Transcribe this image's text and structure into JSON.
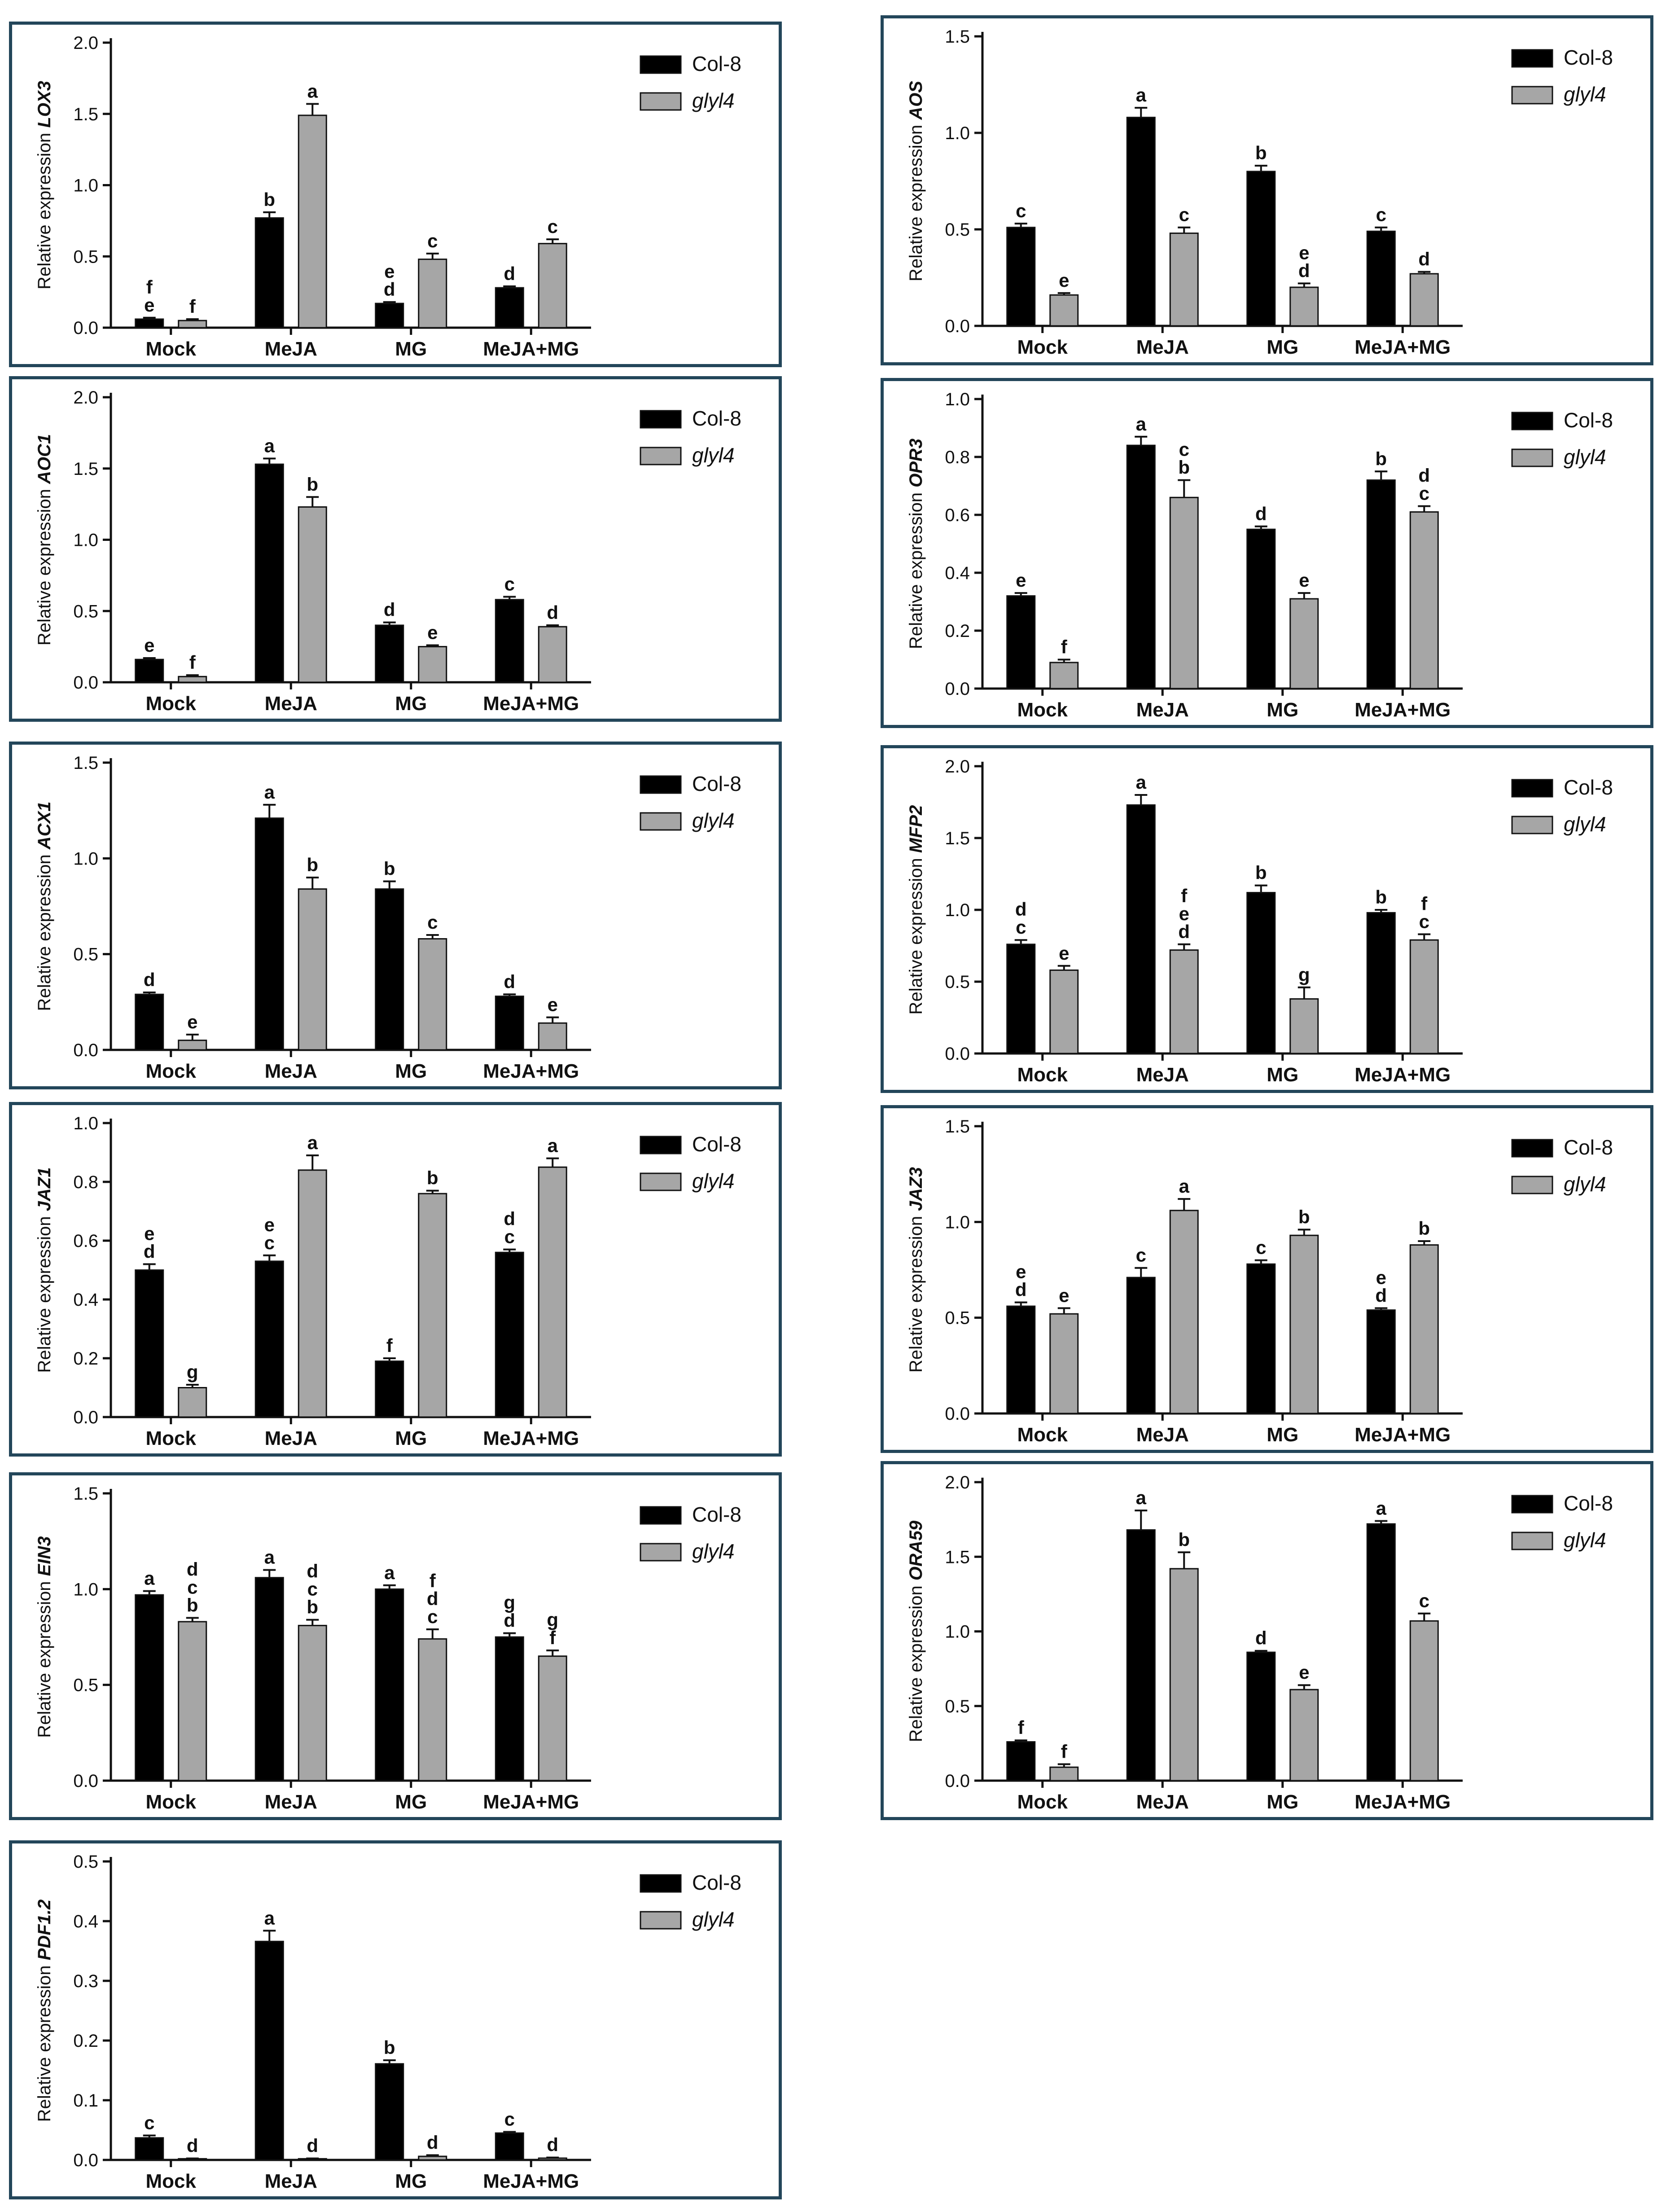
{
  "legend": [
    {
      "name": "Col-8",
      "color": "#000000",
      "italic": false
    },
    {
      "name": "glyl4",
      "color": "#a6a6a6",
      "italic": true
    }
  ],
  "chart_data": [
    {
      "type": "bar",
      "title": "",
      "ylabel_prefix": "Relative expression ",
      "gene": "LOX3",
      "categories": [
        "Mock",
        "MeJA",
        "MG",
        "MeJA+MG"
      ],
      "ylim": [
        0,
        2.0
      ],
      "yticks": [
        "0.0",
        "0.5",
        "1.0",
        "1.5",
        "2.0"
      ],
      "series": [
        {
          "name": "Col-8",
          "values": [
            0.06,
            0.77,
            0.17,
            0.28
          ],
          "errors": [
            0.01,
            0.04,
            0.01,
            0.01
          ],
          "letters": [
            "f\ne",
            "b",
            "e\nd",
            "d"
          ]
        },
        {
          "name": "glyl4",
          "values": [
            0.05,
            1.49,
            0.48,
            0.59
          ],
          "errors": [
            0.01,
            0.08,
            0.04,
            0.03
          ],
          "letters": [
            "f",
            "a",
            "c",
            "c"
          ]
        }
      ]
    },
    {
      "type": "bar",
      "title": "",
      "ylabel_prefix": "Relative expression ",
      "gene": "AOS",
      "categories": [
        "Mock",
        "MeJA",
        "MG",
        "MeJA+MG"
      ],
      "ylim": [
        0,
        1.5
      ],
      "yticks": [
        "0.0",
        "0.5",
        "1.0",
        "1.5"
      ],
      "series": [
        {
          "name": "Col-8",
          "values": [
            0.51,
            1.08,
            0.8,
            0.49
          ],
          "errors": [
            0.02,
            0.05,
            0.03,
            0.02
          ],
          "letters": [
            "c",
            "a",
            "b",
            "c"
          ]
        },
        {
          "name": "glyl4",
          "values": [
            0.16,
            0.48,
            0.2,
            0.27
          ],
          "errors": [
            0.01,
            0.03,
            0.02,
            0.01
          ],
          "letters": [
            "e",
            "c",
            "e\nd",
            "d"
          ]
        }
      ]
    },
    {
      "type": "bar",
      "title": "",
      "ylabel_prefix": "Relative expression ",
      "gene": "AOC1",
      "categories": [
        "Mock",
        "MeJA",
        "MG",
        "MeJA+MG"
      ],
      "ylim": [
        0,
        2.0
      ],
      "yticks": [
        "0.0",
        "0.5",
        "1.0",
        "1.5",
        "2.0"
      ],
      "series": [
        {
          "name": "Col-8",
          "values": [
            0.16,
            1.53,
            0.4,
            0.58
          ],
          "errors": [
            0.01,
            0.04,
            0.02,
            0.02
          ],
          "letters": [
            "e",
            "a",
            "d",
            "c"
          ]
        },
        {
          "name": "glyl4",
          "values": [
            0.04,
            1.23,
            0.25,
            0.39
          ],
          "errors": [
            0.01,
            0.07,
            0.01,
            0.01
          ],
          "letters": [
            "f",
            "b",
            "e",
            "d"
          ]
        }
      ]
    },
    {
      "type": "bar",
      "title": "",
      "ylabel_prefix": "Relative expression ",
      "gene": "OPR3",
      "categories": [
        "Mock",
        "MeJA",
        "MG",
        "MeJA+MG"
      ],
      "ylim": [
        0,
        1.0
      ],
      "yticks": [
        "0.0",
        "0.2",
        "0.4",
        "0.6",
        "0.8",
        "1.0"
      ],
      "series": [
        {
          "name": "Col-8",
          "values": [
            0.32,
            0.84,
            0.55,
            0.72
          ],
          "errors": [
            0.01,
            0.03,
            0.01,
            0.03
          ],
          "letters": [
            "e",
            "a",
            "d",
            "b"
          ]
        },
        {
          "name": "glyl4",
          "values": [
            0.09,
            0.66,
            0.31,
            0.61
          ],
          "errors": [
            0.01,
            0.06,
            0.02,
            0.02
          ],
          "letters": [
            "f",
            "c\nb",
            "e",
            "d\nc"
          ]
        }
      ]
    },
    {
      "type": "bar",
      "title": "",
      "ylabel_prefix": "Relative expression ",
      "gene": "ACX1",
      "categories": [
        "Mock",
        "MeJA",
        "MG",
        "MeJA+MG"
      ],
      "ylim": [
        0,
        1.5
      ],
      "yticks": [
        "0.0",
        "0.5",
        "1.0",
        "1.5"
      ],
      "series": [
        {
          "name": "Col-8",
          "values": [
            0.29,
            1.21,
            0.84,
            0.28
          ],
          "errors": [
            0.01,
            0.07,
            0.04,
            0.01
          ],
          "letters": [
            "d",
            "a",
            "b",
            "d"
          ]
        },
        {
          "name": "glyl4",
          "values": [
            0.05,
            0.84,
            0.58,
            0.14
          ],
          "errors": [
            0.03,
            0.06,
            0.02,
            0.03
          ],
          "letters": [
            "e",
            "b",
            "c",
            "e"
          ]
        }
      ]
    },
    {
      "type": "bar",
      "title": "",
      "ylabel_prefix": "Relative expression ",
      "gene": "MFP2",
      "categories": [
        "Mock",
        "MeJA",
        "MG",
        "MeJA+MG"
      ],
      "ylim": [
        0,
        2.0
      ],
      "yticks": [
        "0.0",
        "0.5",
        "1.0",
        "1.5",
        "2.0"
      ],
      "series": [
        {
          "name": "Col-8",
          "values": [
            0.76,
            1.73,
            1.12,
            0.98
          ],
          "errors": [
            0.03,
            0.07,
            0.05,
            0.02
          ],
          "letters": [
            "d\nc",
            "a",
            "b",
            "b"
          ]
        },
        {
          "name": "glyl4",
          "values": [
            0.58,
            0.72,
            0.38,
            0.79
          ],
          "errors": [
            0.03,
            0.04,
            0.08,
            0.04
          ],
          "letters": [
            "e",
            "f\ne\nd",
            "g",
            "f\nc"
          ]
        }
      ]
    },
    {
      "type": "bar",
      "title": "",
      "ylabel_prefix": "Relative expression ",
      "gene": "JAZ1",
      "categories": [
        "Mock",
        "MeJA",
        "MG",
        "MeJA+MG"
      ],
      "ylim": [
        0,
        1.0
      ],
      "yticks": [
        "0.0",
        "0.2",
        "0.4",
        "0.6",
        "0.8",
        "1.0"
      ],
      "series": [
        {
          "name": "Col-8",
          "values": [
            0.5,
            0.53,
            0.19,
            0.56
          ],
          "errors": [
            0.02,
            0.02,
            0.01,
            0.01
          ],
          "letters": [
            "e\nd",
            "e\nc",
            "f",
            "d\nc"
          ]
        },
        {
          "name": "glyl4",
          "values": [
            0.1,
            0.84,
            0.76,
            0.85
          ],
          "errors": [
            0.01,
            0.05,
            0.01,
            0.03
          ],
          "letters": [
            "g",
            "a",
            "b",
            "a"
          ]
        }
      ]
    },
    {
      "type": "bar",
      "title": "",
      "ylabel_prefix": "Relative expression ",
      "gene": "JAZ3",
      "categories": [
        "Mock",
        "MeJA",
        "MG",
        "MeJA+MG"
      ],
      "ylim": [
        0,
        1.5
      ],
      "yticks": [
        "0.0",
        "0.5",
        "1.0",
        "1.5"
      ],
      "series": [
        {
          "name": "Col-8",
          "values": [
            0.56,
            0.71,
            0.78,
            0.54
          ],
          "errors": [
            0.02,
            0.05,
            0.02,
            0.01
          ],
          "letters": [
            "e\nd",
            "c",
            "c",
            "e\nd"
          ]
        },
        {
          "name": "glyl4",
          "values": [
            0.52,
            1.06,
            0.93,
            0.88
          ],
          "errors": [
            0.03,
            0.06,
            0.03,
            0.02
          ],
          "letters": [
            "e",
            "a",
            "b",
            "b"
          ]
        }
      ]
    },
    {
      "type": "bar",
      "title": "",
      "ylabel_prefix": "Relative expression ",
      "gene": "EIN3",
      "categories": [
        "Mock",
        "MeJA",
        "MG",
        "MeJA+MG"
      ],
      "ylim": [
        0,
        1.5
      ],
      "yticks": [
        "0.0",
        "0.5",
        "1.0",
        "1.5"
      ],
      "series": [
        {
          "name": "Col-8",
          "values": [
            0.97,
            1.06,
            1.0,
            0.75
          ],
          "errors": [
            0.02,
            0.04,
            0.02,
            0.02
          ],
          "letters": [
            "a",
            "a",
            "a",
            "g\nd"
          ]
        },
        {
          "name": "glyl4",
          "values": [
            0.83,
            0.81,
            0.74,
            0.65
          ],
          "errors": [
            0.02,
            0.03,
            0.05,
            0.03
          ],
          "letters": [
            "d\nc\nb",
            "d\nc\nb",
            "f\nd\nc",
            "g\nf"
          ]
        }
      ]
    },
    {
      "type": "bar",
      "title": "",
      "ylabel_prefix": "Relative expression ",
      "gene": "ORA59",
      "categories": [
        "Mock",
        "MeJA",
        "MG",
        "MeJA+MG"
      ],
      "ylim": [
        0,
        2.0
      ],
      "yticks": [
        "0.0",
        "0.5",
        "1.0",
        "1.5",
        "2.0"
      ],
      "series": [
        {
          "name": "Col-8",
          "values": [
            0.26,
            1.68,
            0.86,
            1.72
          ],
          "errors": [
            0.01,
            0.13,
            0.01,
            0.02
          ],
          "letters": [
            "f",
            "a",
            "d",
            "a"
          ]
        },
        {
          "name": "glyl4",
          "values": [
            0.09,
            1.42,
            0.61,
            1.07
          ],
          "errors": [
            0.02,
            0.11,
            0.03,
            0.05
          ],
          "letters": [
            "f",
            "b",
            "e",
            "c"
          ]
        }
      ]
    },
    {
      "type": "bar",
      "title": "",
      "ylabel_prefix": "Relative expression ",
      "gene": "PDF1.2",
      "categories": [
        "Mock",
        "MeJA",
        "MG",
        "MeJA+MG"
      ],
      "ylim": [
        0,
        0.5
      ],
      "yticks": [
        "0.0",
        "0.1",
        "0.2",
        "0.3",
        "0.4",
        "0.5"
      ],
      "series": [
        {
          "name": "Col-8",
          "values": [
            0.037,
            0.366,
            0.161,
            0.045
          ],
          "errors": [
            0.004,
            0.018,
            0.006,
            0.002
          ],
          "letters": [
            "c",
            "a",
            "b",
            "c"
          ]
        },
        {
          "name": "glyl4",
          "values": [
            0.002,
            0.002,
            0.006,
            0.003
          ],
          "errors": [
            0.0005,
            0.0005,
            0.002,
            0.001
          ],
          "letters": [
            "d",
            "d",
            "d",
            "d"
          ]
        }
      ]
    }
  ]
}
